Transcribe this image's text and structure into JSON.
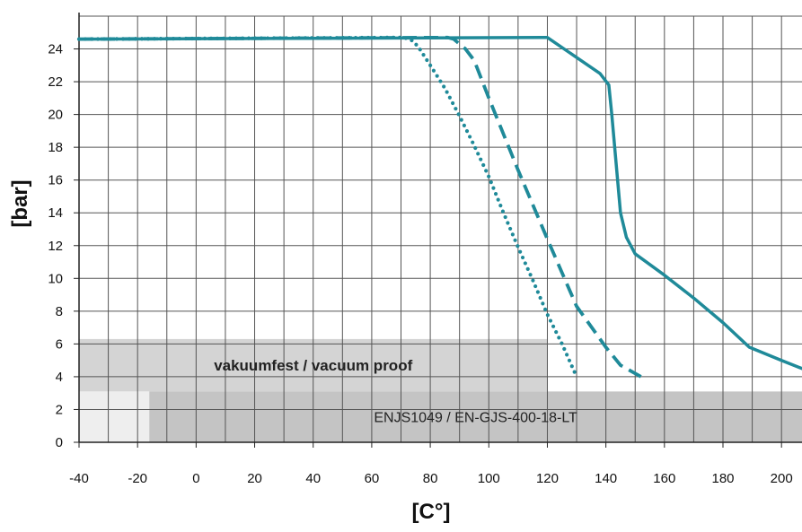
{
  "chart_data": {
    "type": "line",
    "xlabel": "[C°]",
    "ylabel": "[bar]",
    "xlim": [
      -40,
      207
    ],
    "ylim": [
      0,
      26
    ],
    "x_ticks": [
      -40,
      -20,
      0,
      20,
      40,
      60,
      80,
      100,
      120,
      140,
      160,
      180,
      200
    ],
    "y_ticks": [
      0,
      2,
      4,
      6,
      8,
      10,
      12,
      14,
      16,
      18,
      20,
      22,
      24
    ],
    "grid": true,
    "grid_step_x": 10,
    "grid_step_y": 2,
    "series": [
      {
        "style": "solid",
        "color": "#1f8a99",
        "x": [
          -40,
          118,
          120,
          138,
          141,
          142,
          145,
          147,
          150,
          160,
          170,
          180,
          189,
          200,
          207
        ],
        "y": [
          24.6,
          24.7,
          24.7,
          22.5,
          21.8,
          20,
          14,
          12.5,
          11.5,
          10.2,
          8.8,
          7.3,
          5.8,
          5.0,
          4.5
        ]
      },
      {
        "style": "dashed",
        "color": "#1f8a99",
        "x": [
          -40,
          86,
          88,
          92,
          95,
          100,
          110,
          120,
          130,
          140,
          145,
          152
        ],
        "y": [
          24.6,
          24.7,
          24.6,
          24.0,
          23.3,
          21.0,
          16.6,
          12.4,
          8.3,
          5.8,
          4.7,
          4.0
        ]
      },
      {
        "style": "dotted",
        "color": "#1f8a99",
        "x": [
          -40,
          71,
          74,
          76,
          80,
          85,
          90,
          95,
          100,
          105,
          110,
          115,
          120,
          125,
          130
        ],
        "y": [
          24.6,
          24.7,
          24.5,
          24.1,
          23.0,
          21.6,
          19.9,
          18.1,
          16.2,
          14.0,
          11.9,
          9.9,
          7.8,
          6.0,
          4.0
        ]
      }
    ],
    "bands": [
      {
        "x0": -40,
        "x1": 120,
        "y0": 3.1,
        "y1": 6.3,
        "color": "#d4d4d4",
        "label": "vakuumfest / vacuum proof",
        "bold": true
      },
      {
        "x0": -40,
        "x1": -16,
        "y0": 0.0,
        "y1": 3.1,
        "color": "#eeeeee",
        "label": "",
        "bold": false
      },
      {
        "x0": -16,
        "x1": 207,
        "y0": 0.0,
        "y1": 3.1,
        "color": "#c4c4c4",
        "label": "ENJS1049 / EN-GJS-400-18-LT",
        "bold": false
      }
    ]
  }
}
